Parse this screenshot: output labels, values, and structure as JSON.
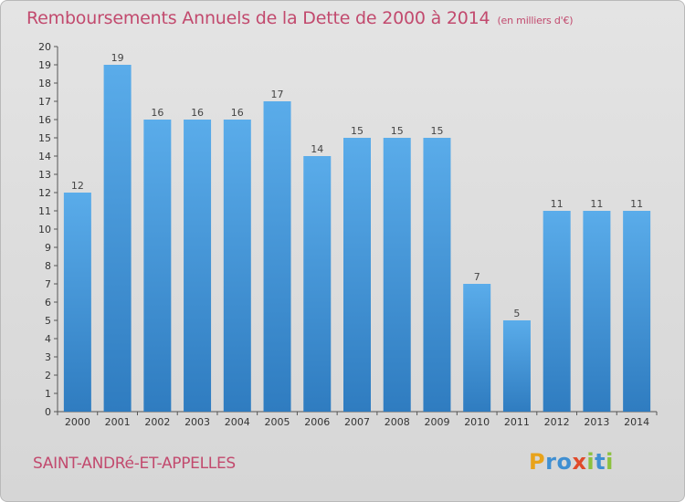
{
  "chart_data": {
    "type": "bar",
    "title": "Remboursements Annuels de la Dette de 2000 à 2014",
    "subtitle": "(en milliers d'€)",
    "categories": [
      "2000",
      "2001",
      "2002",
      "2003",
      "2004",
      "2005",
      "2006",
      "2007",
      "2008",
      "2009",
      "2010",
      "2011",
      "2012",
      "2013",
      "2014"
    ],
    "values": [
      12,
      19,
      16,
      16,
      16,
      17,
      14,
      15,
      15,
      15,
      7,
      5,
      11,
      11,
      11
    ],
    "xlabel": "",
    "ylabel": "",
    "ylim": [
      0,
      20
    ],
    "yticks": [
      0,
      1,
      2,
      3,
      4,
      5,
      6,
      7,
      8,
      9,
      10,
      11,
      12,
      13,
      14,
      15,
      16,
      17,
      18,
      19,
      20
    ],
    "grid": false,
    "bar_color": "#4a9ee0"
  },
  "footer": {
    "city": "SAINT-ANDRé-ET-APPELLES",
    "logo_letters": [
      "P",
      "r",
      "o",
      "x",
      "i",
      "t",
      "i"
    ],
    "logo_colors": [
      "#e8a31b",
      "#3f8fd2",
      "#3f8fd2",
      "#e04a2a",
      "#8cc13f",
      "#3f8fd2",
      "#8cc13f"
    ]
  }
}
